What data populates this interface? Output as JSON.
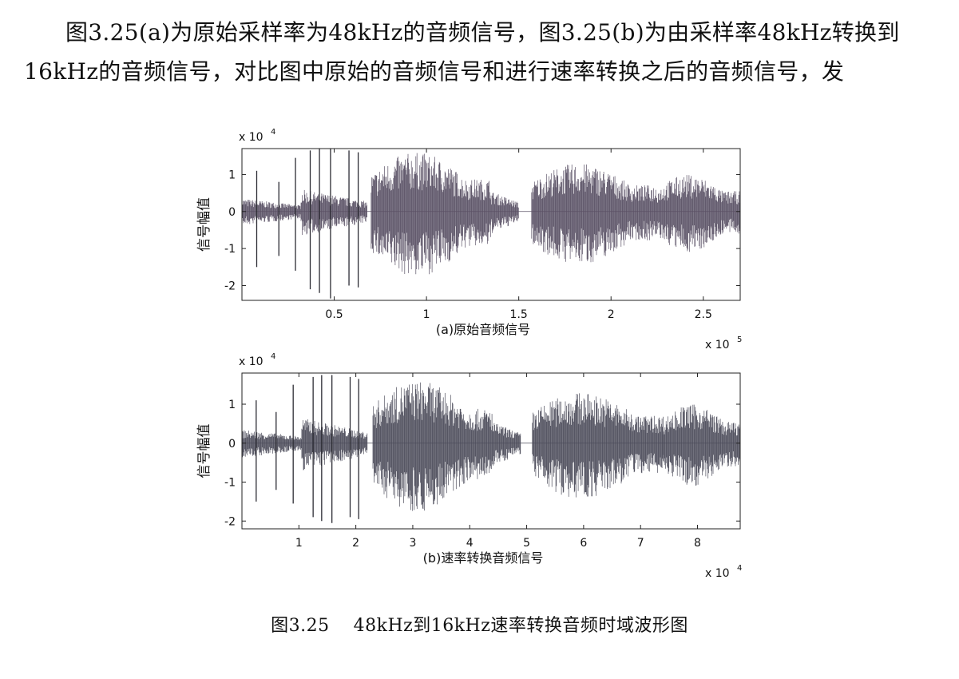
{
  "paragraph": {
    "line1": "图3.25(a)为原始采样率为48kHz的音频信号，图3.25(b)为由采样率48kHz转换到",
    "line2": "16kHz的音频信号，对比图中原始的音频信号和进行速率转换之后的音频信号，发"
  },
  "figure_caption": {
    "number": "图3.25",
    "text": "48kHz到16kHz速率转换音频时域波形图"
  },
  "chart_data": [
    {
      "type": "line",
      "title": "(a)原始音频信号",
      "ylabel": "信号幅值",
      "xlabel": "",
      "x_multiplier": "x 10",
      "x_exponent": "5",
      "y_multiplier": "x 10",
      "y_exponent": "4",
      "xlim": [
        0,
        270000
      ],
      "ylim": [
        -2.4,
        1.7
      ],
      "x_ticks": [
        50000,
        100000,
        150000,
        200000,
        250000
      ],
      "x_tick_labels": [
        "0.5",
        "1",
        "1.5",
        "2",
        "2.5"
      ],
      "y_ticks": [
        -2,
        -1,
        0,
        1
      ],
      "y_tick_labels": [
        "-2",
        "-1",
        "0",
        "1"
      ],
      "color": "#5b5266",
      "segments": [
        {
          "start": 0,
          "end": 32000,
          "amp": 0.3
        },
        {
          "start": 32000,
          "end": 68000,
          "amp": 0.55
        },
        {
          "start": 70000,
          "end": 135000,
          "amp": 1.6
        },
        {
          "start": 135000,
          "end": 150000,
          "amp": 0.5
        },
        {
          "start": 157000,
          "end": 225000,
          "amp": 1.3
        },
        {
          "start": 225000,
          "end": 270000,
          "amp": 1.0
        }
      ],
      "spikes": [
        {
          "x": 8000,
          "top": 1.1,
          "bottom": -1.5
        },
        {
          "x": 20000,
          "top": 0.8,
          "bottom": -1.2
        },
        {
          "x": 29000,
          "top": 1.45,
          "bottom": -1.6
        },
        {
          "x": 37000,
          "top": 1.65,
          "bottom": -2.1
        },
        {
          "x": 42000,
          "top": 1.7,
          "bottom": -2.2
        },
        {
          "x": 48000,
          "top": 1.7,
          "bottom": -2.35
        },
        {
          "x": 58000,
          "top": 1.65,
          "bottom": -2.0
        },
        {
          "x": 63000,
          "top": 1.6,
          "bottom": -2.05
        }
      ],
      "grid": false,
      "legend": "none"
    },
    {
      "type": "line",
      "title": "(b)速率转换音频信号",
      "ylabel": "信号幅值",
      "xlabel": "",
      "x_multiplier": "x 10",
      "x_exponent": "4",
      "y_multiplier": "x 10",
      "y_exponent": "4",
      "xlim": [
        0,
        87500
      ],
      "ylim": [
        -2.2,
        1.8
      ],
      "x_ticks": [
        10000,
        20000,
        30000,
        40000,
        50000,
        60000,
        70000,
        80000
      ],
      "x_tick_labels": [
        "1",
        "2",
        "3",
        "4",
        "5",
        "6",
        "7",
        "8"
      ],
      "y_ticks": [
        -2,
        -1,
        0,
        1
      ],
      "y_tick_labels": [
        "-2",
        "-1",
        "0",
        "1"
      ],
      "color": "#4e4e5c",
      "segments": [
        {
          "start": 0,
          "end": 10500,
          "amp": 0.3
        },
        {
          "start": 10500,
          "end": 22000,
          "amp": 0.6
        },
        {
          "start": 23000,
          "end": 44000,
          "amp": 1.6
        },
        {
          "start": 44000,
          "end": 49000,
          "amp": 0.5
        },
        {
          "start": 51000,
          "end": 74000,
          "amp": 1.3
        },
        {
          "start": 74000,
          "end": 87500,
          "amp": 1.0
        }
      ],
      "spikes": [
        {
          "x": 2500,
          "top": 1.1,
          "bottom": -1.5
        },
        {
          "x": 6000,
          "top": 0.8,
          "bottom": -1.2
        },
        {
          "x": 9000,
          "top": 1.5,
          "bottom": -1.55
        },
        {
          "x": 12500,
          "top": 1.7,
          "bottom": -1.9
        },
        {
          "x": 14000,
          "top": 1.75,
          "bottom": -2.0
        },
        {
          "x": 15800,
          "top": 1.75,
          "bottom": -2.05
        },
        {
          "x": 19000,
          "top": 1.7,
          "bottom": -1.9
        },
        {
          "x": 20500,
          "top": 1.65,
          "bottom": -1.95
        }
      ],
      "grid": false,
      "legend": "none"
    }
  ]
}
